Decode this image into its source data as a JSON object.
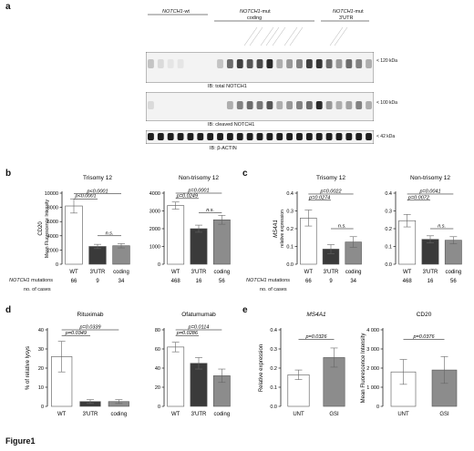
{
  "figure_label": "Figure1",
  "panel_a": {
    "label": "a",
    "groups": [
      {
        "name": "NOTCH1-wt",
        "italic_part": "NOTCH1",
        "suffix": "-wt"
      },
      {
        "name": "NOTCH1-mut coding",
        "italic_part": "NOTCH1",
        "suffix": "-mut",
        "line2": "coding"
      },
      {
        "name": "NOTCH1-mut 3'UTR",
        "italic_part": "NOTCH1",
        "suffix": "-mut",
        "line2": "3'UTR"
      }
    ],
    "blots": [
      {
        "label": "IB: total NOTCH1",
        "marker": "< 120 kDa"
      },
      {
        "label": "IB: cleaved NOTCH1",
        "marker": "< 100 kDa"
      },
      {
        "label": "IB: β-ACTIN",
        "marker": "< 42 kDa"
      }
    ]
  },
  "panels": {
    "b": {
      "label": "b"
    },
    "c": {
      "label": "c"
    },
    "d": {
      "label": "d"
    },
    "e": {
      "label": "e"
    }
  },
  "row_labels": {
    "mutations_italic": "NOTCH1",
    "mutations_rest": " mutations",
    "cases": "no. of cases"
  },
  "chart_data": [
    {
      "id": "b-left",
      "type": "bar",
      "title": "Trisomy 12",
      "ylabel": "CD20",
      "ylabel2": "Mean Fluorescence Intensity",
      "ylim": [
        0,
        10000
      ],
      "yticks": [
        0,
        2000,
        4000,
        6000,
        8000,
        10000
      ],
      "ytick_labels": [
        "0",
        "2000",
        "4000",
        "6000",
        "8000",
        "10000"
      ],
      "categories": [
        "WT",
        "3'UTR",
        "coding"
      ],
      "values": [
        8200,
        2500,
        2600
      ],
      "errors": [
        1000,
        300,
        300
      ],
      "cases": [
        "66",
        "9",
        "34"
      ],
      "annotations": [
        {
          "text": "p<0.0001",
          "from": 0,
          "to": 2,
          "level": 9900
        },
        {
          "text": "p<0.0001",
          "from": 0,
          "to": 1,
          "level": 9200
        },
        {
          "text": "n.s.",
          "from": 1,
          "to": 2,
          "level": 4000
        }
      ]
    },
    {
      "id": "b-right",
      "type": "bar",
      "title": "Non-trisomy 12",
      "ylim": [
        0,
        4000
      ],
      "yticks": [
        0,
        1000,
        2000,
        3000,
        4000
      ],
      "ytick_labels": [
        "0",
        "1000",
        "2000",
        "3000",
        "4000"
      ],
      "categories": [
        "WT",
        "3'UTR",
        "coding"
      ],
      "values": [
        3300,
        2000,
        2500
      ],
      "errors": [
        200,
        200,
        250
      ],
      "cases": [
        "468",
        "16",
        "56"
      ],
      "annotations": [
        {
          "text": "p=0.0001",
          "from": 0,
          "to": 2,
          "level": 4000
        },
        {
          "text": "p=0.0249",
          "from": 0,
          "to": 1,
          "level": 3700
        },
        {
          "text": "n.s.",
          "from": 1,
          "to": 2,
          "level": 2900
        }
      ]
    },
    {
      "id": "c-left",
      "type": "bar",
      "title": "Trisomy 12",
      "ylabel": "MS4A1",
      "ylabel2": "relative expression",
      "ylim": [
        0,
        0.4
      ],
      "yticks": [
        0,
        0.1,
        0.2,
        0.3,
        0.4
      ],
      "ytick_labels": [
        "0.0",
        "0.1",
        "0.2",
        "0.3",
        "0.4"
      ],
      "categories": [
        "WT",
        "3'UTR",
        "coding"
      ],
      "values": [
        0.26,
        0.085,
        0.125
      ],
      "errors": [
        0.045,
        0.025,
        0.03
      ],
      "cases": [
        "66",
        "9",
        "34"
      ],
      "annotations": [
        {
          "text": "p=0.0022",
          "from": 0,
          "to": 2,
          "level": 0.395
        },
        {
          "text": "p=0.0274",
          "from": 0,
          "to": 1,
          "level": 0.36
        },
        {
          "text": "n.s.",
          "from": 1,
          "to": 2,
          "level": 0.2
        }
      ]
    },
    {
      "id": "c-right",
      "type": "bar",
      "title": "Non-trisomy 12",
      "ylim": [
        0,
        0.4
      ],
      "yticks": [
        0,
        0.1,
        0.2,
        0.3,
        0.4
      ],
      "ytick_labels": [
        "0.0",
        "0.1",
        "0.2",
        "0.3",
        "0.4"
      ],
      "categories": [
        "WT",
        "3'UTR",
        "coding"
      ],
      "values": [
        0.245,
        0.14,
        0.135
      ],
      "errors": [
        0.035,
        0.02,
        0.02
      ],
      "cases": [
        "468",
        "16",
        "56"
      ],
      "annotations": [
        {
          "text": "p=0.0041",
          "from": 0,
          "to": 2,
          "level": 0.395
        },
        {
          "text": "p=0.0072",
          "from": 0,
          "to": 1,
          "level": 0.36
        },
        {
          "text": "n.s.",
          "from": 1,
          "to": 2,
          "level": 0.2
        }
      ]
    },
    {
      "id": "d-left",
      "type": "bar",
      "title": "Rituximab",
      "ylabel": "% of relative lysys",
      "ylim": [
        0,
        40
      ],
      "yticks": [
        0,
        10,
        20,
        30,
        40
      ],
      "ytick_labels": [
        "0",
        "10",
        "20",
        "30",
        "40"
      ],
      "categories": [
        "WT",
        "3'UTR",
        "coding"
      ],
      "values": [
        26,
        2.5,
        2.5
      ],
      "errors": [
        8,
        1,
        1
      ],
      "annotations": [
        {
          "text": "p=0.0339",
          "from": 0,
          "to": 2,
          "level": 40
        },
        {
          "text": "p=0.0349",
          "from": 0,
          "to": 1,
          "level": 37
        }
      ]
    },
    {
      "id": "d-right",
      "type": "bar",
      "title": "Ofatumumab",
      "ylim": [
        0,
        80
      ],
      "yticks": [
        0,
        20,
        40,
        60,
        80
      ],
      "ytick_labels": [
        "0",
        "20",
        "40",
        "60",
        "80"
      ],
      "categories": [
        "WT",
        "3'UTR",
        "coding"
      ],
      "values": [
        62,
        45,
        32
      ],
      "errors": [
        5,
        6,
        7
      ],
      "annotations": [
        {
          "text": "p=0.0114",
          "from": 0,
          "to": 2,
          "level": 80
        },
        {
          "text": "p=0.0286",
          "from": 0,
          "to": 1,
          "level": 74
        }
      ]
    },
    {
      "id": "e-left",
      "type": "bar",
      "title": "MS4A1",
      "ylabel": "Relative expression",
      "ylim": [
        0,
        0.4
      ],
      "yticks": [
        0,
        0.1,
        0.2,
        0.3,
        0.4
      ],
      "ytick_labels": [
        "0.0",
        "0.1",
        "0.2",
        "0.3",
        "0.4"
      ],
      "categories": [
        "UNT",
        "GSI"
      ],
      "values": [
        0.165,
        0.255
      ],
      "errors": [
        0.025,
        0.05
      ],
      "annotations": [
        {
          "text": "p=0.0326",
          "from": 0,
          "to": 1,
          "level": 0.35
        }
      ]
    },
    {
      "id": "e-right",
      "type": "bar",
      "title": "CD20",
      "ylabel": "Mean Fluorescence Intensity",
      "ylim": [
        0,
        4000
      ],
      "yticks": [
        0,
        1000,
        2000,
        3000,
        4000
      ],
      "ytick_labels": [
        "0",
        "1 000",
        "2 000",
        "3 000",
        "4 000"
      ],
      "categories": [
        "UNT",
        "GSI"
      ],
      "values": [
        1800,
        1900
      ],
      "errors": [
        650,
        700
      ],
      "annotations": [
        {
          "text": "p=0.0376",
          "from": 0,
          "to": 1,
          "level": 3500
        }
      ]
    }
  ]
}
